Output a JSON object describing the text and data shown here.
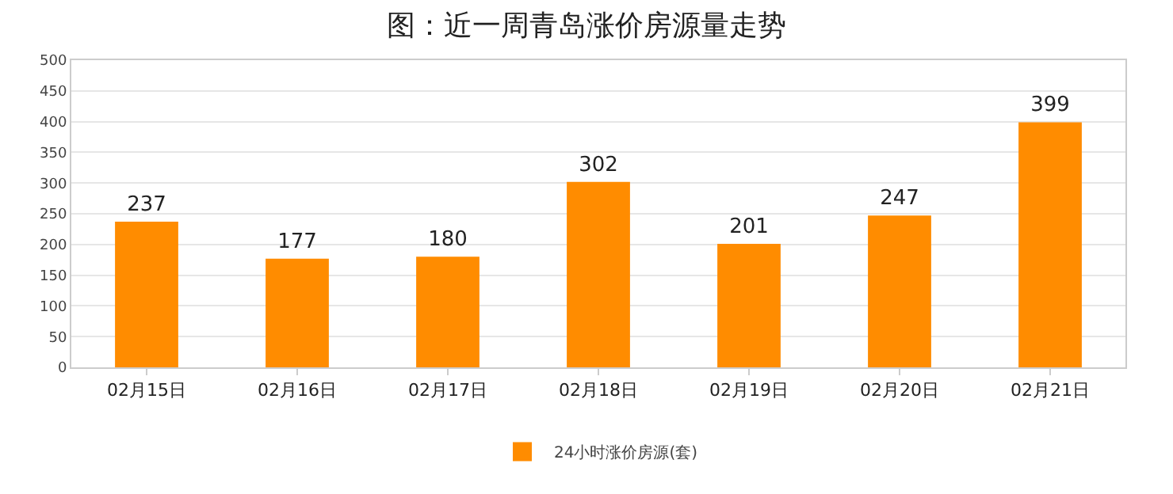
{
  "chart_data": {
    "type": "bar",
    "title": "图：近一周青岛涨价房源量走势",
    "categories": [
      "02月15日",
      "02月16日",
      "02月17日",
      "02月18日",
      "02月19日",
      "02月20日",
      "02月21日"
    ],
    "series": [
      {
        "name": "24小时涨价房源(套)",
        "color": "#ff8c00",
        "values": [
          237,
          177,
          180,
          302,
          201,
          247,
          399
        ]
      }
    ],
    "ylim": [
      0,
      500
    ],
    "yticks": [
      0,
      50,
      100,
      150,
      200,
      250,
      300,
      350,
      400,
      450,
      500
    ],
    "grid": "y",
    "legend": "bottom",
    "data_labels": true
  }
}
